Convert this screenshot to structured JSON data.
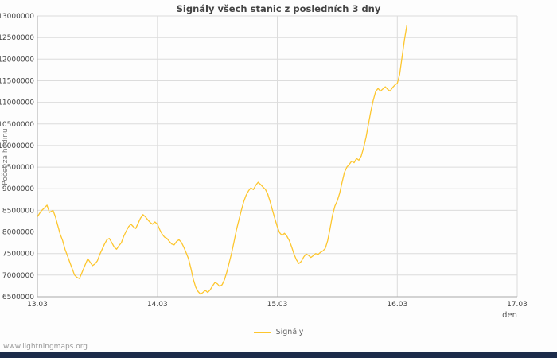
{
  "footer": {
    "site": "www.lightningmaps.org"
  },
  "colors": {
    "line": "#fdc62e",
    "grid": "#dcdcdc",
    "axis": "#a9a9a9",
    "bottom_bar": "#1c2b4a",
    "background": "#fdfdfd"
  },
  "chart_data": {
    "type": "line",
    "title": "Signály všech stanic z posledních 3 dny",
    "xlabel": "den",
    "ylabel": "Počet za hodinu",
    "x_ticks": [
      "13.03",
      "14.03",
      "15.03",
      "16.03",
      "17.03"
    ],
    "ylim": [
      6500000,
      13000000
    ],
    "y_tick_step": 500000,
    "grid": true,
    "legend_position": "bottom",
    "line_color": "#fdc62e",
    "series": [
      {
        "name": "Signály",
        "points": [
          [
            0.0,
            8350000
          ],
          [
            0.03,
            8480000
          ],
          [
            0.06,
            8560000
          ],
          [
            0.08,
            8620000
          ],
          [
            0.1,
            8450000
          ],
          [
            0.13,
            8500000
          ],
          [
            0.15,
            8350000
          ],
          [
            0.17,
            8150000
          ],
          [
            0.19,
            7950000
          ],
          [
            0.21,
            7800000
          ],
          [
            0.23,
            7600000
          ],
          [
            0.25,
            7450000
          ],
          [
            0.27,
            7300000
          ],
          [
            0.29,
            7150000
          ],
          [
            0.31,
            7000000
          ],
          [
            0.33,
            6950000
          ],
          [
            0.35,
            6920000
          ],
          [
            0.37,
            7050000
          ],
          [
            0.4,
            7250000
          ],
          [
            0.42,
            7380000
          ],
          [
            0.44,
            7300000
          ],
          [
            0.46,
            7220000
          ],
          [
            0.48,
            7260000
          ],
          [
            0.5,
            7330000
          ],
          [
            0.52,
            7480000
          ],
          [
            0.54,
            7600000
          ],
          [
            0.56,
            7720000
          ],
          [
            0.58,
            7820000
          ],
          [
            0.6,
            7850000
          ],
          [
            0.62,
            7750000
          ],
          [
            0.64,
            7650000
          ],
          [
            0.66,
            7600000
          ],
          [
            0.68,
            7680000
          ],
          [
            0.7,
            7750000
          ],
          [
            0.72,
            7900000
          ],
          [
            0.74,
            8020000
          ],
          [
            0.76,
            8120000
          ],
          [
            0.78,
            8180000
          ],
          [
            0.8,
            8120000
          ],
          [
            0.82,
            8080000
          ],
          [
            0.84,
            8200000
          ],
          [
            0.86,
            8320000
          ],
          [
            0.88,
            8400000
          ],
          [
            0.9,
            8350000
          ],
          [
            0.92,
            8280000
          ],
          [
            0.94,
            8220000
          ],
          [
            0.96,
            8180000
          ],
          [
            0.98,
            8230000
          ],
          [
            1.0,
            8180000
          ],
          [
            1.02,
            8050000
          ],
          [
            1.04,
            7950000
          ],
          [
            1.06,
            7880000
          ],
          [
            1.08,
            7850000
          ],
          [
            1.1,
            7780000
          ],
          [
            1.12,
            7720000
          ],
          [
            1.14,
            7700000
          ],
          [
            1.16,
            7780000
          ],
          [
            1.18,
            7820000
          ],
          [
            1.2,
            7760000
          ],
          [
            1.22,
            7650000
          ],
          [
            1.24,
            7520000
          ],
          [
            1.26,
            7380000
          ],
          [
            1.28,
            7150000
          ],
          [
            1.3,
            6900000
          ],
          [
            1.32,
            6720000
          ],
          [
            1.34,
            6620000
          ],
          [
            1.36,
            6560000
          ],
          [
            1.38,
            6600000
          ],
          [
            1.4,
            6650000
          ],
          [
            1.42,
            6600000
          ],
          [
            1.44,
            6660000
          ],
          [
            1.46,
            6750000
          ],
          [
            1.48,
            6830000
          ],
          [
            1.5,
            6800000
          ],
          [
            1.52,
            6740000
          ],
          [
            1.54,
            6780000
          ],
          [
            1.56,
            6900000
          ],
          [
            1.58,
            7080000
          ],
          [
            1.6,
            7300000
          ],
          [
            1.62,
            7520000
          ],
          [
            1.64,
            7780000
          ],
          [
            1.66,
            8050000
          ],
          [
            1.68,
            8280000
          ],
          [
            1.7,
            8500000
          ],
          [
            1.72,
            8700000
          ],
          [
            1.74,
            8850000
          ],
          [
            1.76,
            8950000
          ],
          [
            1.78,
            9020000
          ],
          [
            1.8,
            8980000
          ],
          [
            1.82,
            9080000
          ],
          [
            1.84,
            9150000
          ],
          [
            1.86,
            9100000
          ],
          [
            1.88,
            9040000
          ],
          [
            1.9,
            8990000
          ],
          [
            1.92,
            8880000
          ],
          [
            1.94,
            8700000
          ],
          [
            1.96,
            8500000
          ],
          [
            1.98,
            8300000
          ],
          [
            2.0,
            8120000
          ],
          [
            2.02,
            7980000
          ],
          [
            2.04,
            7920000
          ],
          [
            2.06,
            7970000
          ],
          [
            2.08,
            7900000
          ],
          [
            2.1,
            7800000
          ],
          [
            2.12,
            7650000
          ],
          [
            2.14,
            7480000
          ],
          [
            2.16,
            7350000
          ],
          [
            2.18,
            7270000
          ],
          [
            2.2,
            7320000
          ],
          [
            2.22,
            7420000
          ],
          [
            2.24,
            7490000
          ],
          [
            2.26,
            7460000
          ],
          [
            2.28,
            7410000
          ],
          [
            2.3,
            7450000
          ],
          [
            2.32,
            7500000
          ],
          [
            2.34,
            7480000
          ],
          [
            2.36,
            7530000
          ],
          [
            2.38,
            7560000
          ],
          [
            2.4,
            7620000
          ],
          [
            2.42,
            7800000
          ],
          [
            2.44,
            8080000
          ],
          [
            2.46,
            8380000
          ],
          [
            2.48,
            8600000
          ],
          [
            2.5,
            8720000
          ],
          [
            2.52,
            8900000
          ],
          [
            2.54,
            9150000
          ],
          [
            2.56,
            9380000
          ],
          [
            2.58,
            9500000
          ],
          [
            2.6,
            9560000
          ],
          [
            2.62,
            9640000
          ],
          [
            2.64,
            9600000
          ],
          [
            2.66,
            9700000
          ],
          [
            2.68,
            9660000
          ],
          [
            2.7,
            9760000
          ],
          [
            2.72,
            9950000
          ],
          [
            2.74,
            10200000
          ],
          [
            2.76,
            10500000
          ],
          [
            2.78,
            10800000
          ],
          [
            2.8,
            11050000
          ],
          [
            2.82,
            11250000
          ],
          [
            2.84,
            11320000
          ],
          [
            2.86,
            11260000
          ],
          [
            2.88,
            11310000
          ],
          [
            2.9,
            11360000
          ],
          [
            2.92,
            11300000
          ],
          [
            2.94,
            11260000
          ],
          [
            2.96,
            11340000
          ],
          [
            2.98,
            11400000
          ],
          [
            3.0,
            11440000
          ],
          [
            3.02,
            11650000
          ],
          [
            3.04,
            12050000
          ],
          [
            3.06,
            12450000
          ],
          [
            3.08,
            12780000
          ]
        ]
      }
    ]
  }
}
